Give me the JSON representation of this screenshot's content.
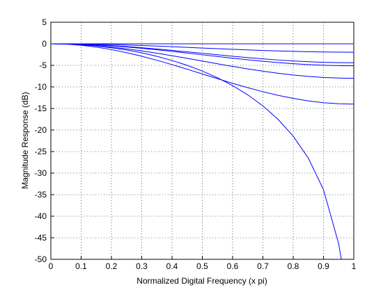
{
  "chart_data": {
    "type": "line",
    "xlabel": "Normalized Digital Frequency (x pi)",
    "ylabel": "Magnitude Response (dB)",
    "x": [
      0,
      0.05,
      0.1,
      0.15,
      0.2,
      0.25,
      0.3,
      0.35,
      0.4,
      0.45,
      0.5,
      0.55,
      0.6,
      0.65,
      0.7,
      0.75,
      0.8,
      0.85,
      0.9,
      0.95,
      0.96,
      1
    ],
    "series": [
      {
        "color": "#0000ff",
        "values": [
          0,
          0,
          0,
          0,
          0,
          0,
          0,
          0,
          0,
          0,
          0,
          0,
          0,
          0,
          0,
          0,
          0,
          0,
          0,
          0,
          0,
          0
        ]
      },
      {
        "color": "#0000ff",
        "values": [
          0,
          -0.01,
          -0.05,
          -0.11,
          -0.19,
          -0.29,
          -0.4,
          -0.53,
          -0.67,
          -0.82,
          -0.98,
          -1.13,
          -1.28,
          -1.42,
          -1.55,
          -1.66,
          -1.76,
          -1.84,
          -1.9,
          -1.94,
          -1.94,
          -1.95
        ]
      },
      {
        "color": "#0000ff",
        "values": [
          0,
          -0.03,
          -0.11,
          -0.24,
          -0.42,
          -0.64,
          -0.91,
          -1.2,
          -1.52,
          -1.86,
          -2.2,
          -2.54,
          -2.88,
          -3.2,
          -3.49,
          -3.76,
          -3.98,
          -4.16,
          -4.3,
          -4.37,
          -4.38,
          -4.4
        ]
      },
      {
        "color": "#0000ff",
        "values": [
          0,
          -0.03,
          -0.12,
          -0.28,
          -0.49,
          -0.75,
          -1.05,
          -1.39,
          -1.76,
          -2.15,
          -2.55,
          -2.95,
          -3.34,
          -3.71,
          -4.05,
          -4.35,
          -4.62,
          -4.82,
          -4.98,
          -5.07,
          -5.08,
          -5.1
        ]
      },
      {
        "color": "#0000ff",
        "values": [
          0,
          -0.05,
          -0.2,
          -0.44,
          -0.76,
          -1.17,
          -1.65,
          -2.18,
          -2.76,
          -3.37,
          -4,
          -4.63,
          -5.24,
          -5.82,
          -6.35,
          -6.83,
          -7.24,
          -7.56,
          -7.8,
          -7.95,
          -7.97,
          -8
        ]
      },
      {
        "color": "#0000ff",
        "values": [
          0,
          -0.09,
          -0.34,
          -0.76,
          -1.34,
          -2.05,
          -2.88,
          -3.82,
          -4.83,
          -5.9,
          -7,
          -8.09,
          -9.17,
          -10.18,
          -11.12,
          -11.95,
          -12.66,
          -13.24,
          -13.67,
          -13.91,
          -13.94,
          -14
        ]
      },
      {
        "color": "#0000ff",
        "values": [
          0,
          -0.06,
          -0.23,
          -0.51,
          -0.92,
          -1.44,
          -2.1,
          -2.91,
          -3.86,
          -5,
          -6.32,
          -7.87,
          -9.71,
          -11.84,
          -14.41,
          -17.52,
          -21.42,
          -26.54,
          -33.83,
          -46.36,
          -50.5,
          null
        ]
      }
    ],
    "xlim": [
      0,
      1
    ],
    "xticks": [
      0,
      0.1,
      0.2,
      0.3,
      0.4,
      0.5,
      0.6,
      0.7,
      0.8,
      0.9,
      1
    ],
    "ylim": [
      -50,
      5
    ],
    "yticks": [
      5,
      0,
      -5,
      -10,
      -15,
      -20,
      -25,
      -30,
      -35,
      -40,
      -45,
      -50
    ],
    "grid": true
  }
}
